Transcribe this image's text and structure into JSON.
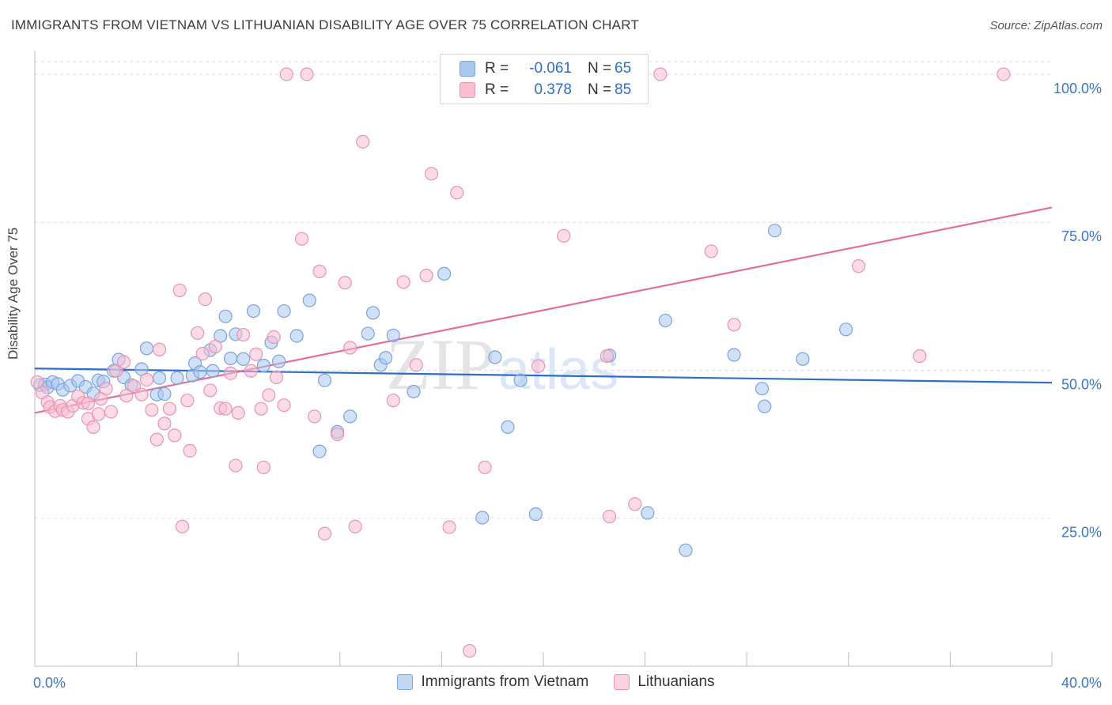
{
  "title": "IMMIGRANTS FROM VIETNAM VS LITHUANIAN DISABILITY AGE OVER 75 CORRELATION CHART",
  "source": "Source: ZipAtlas.com",
  "watermark": "ZIPatlas",
  "legend": {
    "rows": [
      {
        "r_label": "R =",
        "r_value": "-0.061",
        "n_label": "N =",
        "n_value": "65",
        "color": "#a9c6ef",
        "border": "#7aa3df"
      },
      {
        "r_label": "R =",
        "r_value": "0.378",
        "n_label": "N =",
        "n_value": "85",
        "color": "#f7bfd1",
        "border": "#ec92b0"
      }
    ]
  },
  "chart_data": {
    "type": "scatter",
    "ylabel": "Disability Age Over 75",
    "x_tick_labels": [
      "0.0%",
      "40.0%"
    ],
    "y_tick_labels": [
      "100.0%",
      "75.0%",
      "50.0%",
      "25.0%"
    ],
    "xlim": [
      0,
      40
    ],
    "ylim": [
      0,
      104
    ],
    "yticks": [
      100,
      75,
      50,
      25
    ],
    "grid": true,
    "legend_position": "bottom",
    "series": [
      {
        "name": "Immigrants from Vietnam",
        "color": "#7aa3df",
        "fill": "#a9c6ef",
        "trend": {
          "x": [
            0,
            40
          ],
          "y": [
            50.3,
            47.9
          ],
          "color": "#2c6ec8"
        },
        "points": [
          [
            0.2,
            47.5
          ],
          [
            0.4,
            47.6
          ],
          [
            0.5,
            47.1
          ],
          [
            0.7,
            48.0
          ],
          [
            0.9,
            47.7
          ],
          [
            1.1,
            46.7
          ],
          [
            1.4,
            47.4
          ],
          [
            1.7,
            48.2
          ],
          [
            2.0,
            47.2
          ],
          [
            2.3,
            46.1
          ],
          [
            2.5,
            48.3
          ],
          [
            2.7,
            48.1
          ],
          [
            3.1,
            49.9
          ],
          [
            3.3,
            51.8
          ],
          [
            3.5,
            48.8
          ],
          [
            3.8,
            47.5
          ],
          [
            4.2,
            50.2
          ],
          [
            4.4,
            53.7
          ],
          [
            4.8,
            45.9
          ],
          [
            4.9,
            48.7
          ],
          [
            5.1,
            46.0
          ],
          [
            5.6,
            48.7
          ],
          [
            6.2,
            49.1
          ],
          [
            6.3,
            51.2
          ],
          [
            6.5,
            49.7
          ],
          [
            6.9,
            53.4
          ],
          [
            7.0,
            49.9
          ],
          [
            7.3,
            55.8
          ],
          [
            7.5,
            59.1
          ],
          [
            7.7,
            52.0
          ],
          [
            7.9,
            56.1
          ],
          [
            8.2,
            51.9
          ],
          [
            8.6,
            60.0
          ],
          [
            9.0,
            50.8
          ],
          [
            9.3,
            54.7
          ],
          [
            9.6,
            51.5
          ],
          [
            9.8,
            60.0
          ],
          [
            10.3,
            55.8
          ],
          [
            10.8,
            61.8
          ],
          [
            11.2,
            36.3
          ],
          [
            11.4,
            48.3
          ],
          [
            11.9,
            39.6
          ],
          [
            12.4,
            42.2
          ],
          [
            13.1,
            56.2
          ],
          [
            13.3,
            59.7
          ],
          [
            13.6,
            50.9
          ],
          [
            13.8,
            52.1
          ],
          [
            14.1,
            55.9
          ],
          [
            14.9,
            46.4
          ],
          [
            16.1,
            66.3
          ],
          [
            17.6,
            25.1
          ],
          [
            18.1,
            52.2
          ],
          [
            18.6,
            40.4
          ],
          [
            19.1,
            48.3
          ],
          [
            19.7,
            25.7
          ],
          [
            22.6,
            52.5
          ],
          [
            24.1,
            25.9
          ],
          [
            24.8,
            58.4
          ],
          [
            25.6,
            19.6
          ],
          [
            27.5,
            52.6
          ],
          [
            28.6,
            46.9
          ],
          [
            28.7,
            43.9
          ],
          [
            29.1,
            73.6
          ],
          [
            30.2,
            51.9
          ],
          [
            31.9,
            56.9
          ]
        ]
      },
      {
        "name": "Lithuanians",
        "color": "#ec92b0",
        "fill": "#f7bfd1",
        "trend": {
          "x": [
            0,
            40
          ],
          "y": [
            42.8,
            77.5
          ],
          "color": "#e46e97"
        },
        "points": [
          [
            0.1,
            48.0
          ],
          [
            0.3,
            46.2
          ],
          [
            0.5,
            44.6
          ],
          [
            0.6,
            43.8
          ],
          [
            0.8,
            43.1
          ],
          [
            1.0,
            44.0
          ],
          [
            1.1,
            43.3
          ],
          [
            1.3,
            43.0
          ],
          [
            1.5,
            44.0
          ],
          [
            1.7,
            45.6
          ],
          [
            1.9,
            44.5
          ],
          [
            2.1,
            44.4
          ],
          [
            2.1,
            41.8
          ],
          [
            2.3,
            40.4
          ],
          [
            2.5,
            42.6
          ],
          [
            2.6,
            45.2
          ],
          [
            2.8,
            46.9
          ],
          [
            3.0,
            43.0
          ],
          [
            3.2,
            49.9
          ],
          [
            3.5,
            51.4
          ],
          [
            3.6,
            45.7
          ],
          [
            3.9,
            47.3
          ],
          [
            4.2,
            45.9
          ],
          [
            4.4,
            48.4
          ],
          [
            4.6,
            43.3
          ],
          [
            4.8,
            38.3
          ],
          [
            4.9,
            53.5
          ],
          [
            5.1,
            41.0
          ],
          [
            5.3,
            43.5
          ],
          [
            5.5,
            39.0
          ],
          [
            5.7,
            63.5
          ],
          [
            5.8,
            23.6
          ],
          [
            6.0,
            44.9
          ],
          [
            6.1,
            36.4
          ],
          [
            6.4,
            56.3
          ],
          [
            6.6,
            52.8
          ],
          [
            6.7,
            62.0
          ],
          [
            6.9,
            46.6
          ],
          [
            7.1,
            54.0
          ],
          [
            7.3,
            43.6
          ],
          [
            7.5,
            43.5
          ],
          [
            7.7,
            49.5
          ],
          [
            7.9,
            33.9
          ],
          [
            8.0,
            42.8
          ],
          [
            8.2,
            56.0
          ],
          [
            8.5,
            49.9
          ],
          [
            8.7,
            52.7
          ],
          [
            8.9,
            43.5
          ],
          [
            9.0,
            33.6
          ],
          [
            9.2,
            45.8
          ],
          [
            9.4,
            55.6
          ],
          [
            9.5,
            48.8
          ],
          [
            9.8,
            44.1
          ],
          [
            9.9,
            100
          ],
          [
            10.5,
            72.2
          ],
          [
            10.7,
            100
          ],
          [
            11.0,
            42.2
          ],
          [
            11.2,
            66.7
          ],
          [
            11.4,
            22.4
          ],
          [
            11.9,
            39.2
          ],
          [
            12.2,
            64.8
          ],
          [
            12.4,
            53.8
          ],
          [
            12.6,
            23.6
          ],
          [
            12.9,
            88.6
          ],
          [
            14.1,
            44.9
          ],
          [
            14.5,
            64.9
          ],
          [
            15.0,
            50.9
          ],
          [
            15.4,
            66.0
          ],
          [
            15.6,
            83.2
          ],
          [
            16.3,
            23.5
          ],
          [
            16.6,
            80.0
          ],
          [
            17.7,
            33.6
          ],
          [
            17.1,
            2.6
          ],
          [
            19.8,
            50.7
          ],
          [
            20.8,
            72.7
          ],
          [
            21.5,
            100
          ],
          [
            22.5,
            52.4
          ],
          [
            22.6,
            25.3
          ],
          [
            23.6,
            27.4
          ],
          [
            24.6,
            100
          ],
          [
            26.6,
            70.1
          ],
          [
            27.5,
            57.7
          ],
          [
            32.4,
            67.6
          ],
          [
            34.8,
            52.4
          ],
          [
            38.1,
            100
          ]
        ]
      }
    ]
  },
  "bottom_legend": [
    {
      "label": "Immigrants from Vietnam",
      "color": "#c3d7f3",
      "border": "#7aa3df"
    },
    {
      "label": "Lithuanians",
      "color": "#fad3e0",
      "border": "#ec92b0"
    }
  ]
}
